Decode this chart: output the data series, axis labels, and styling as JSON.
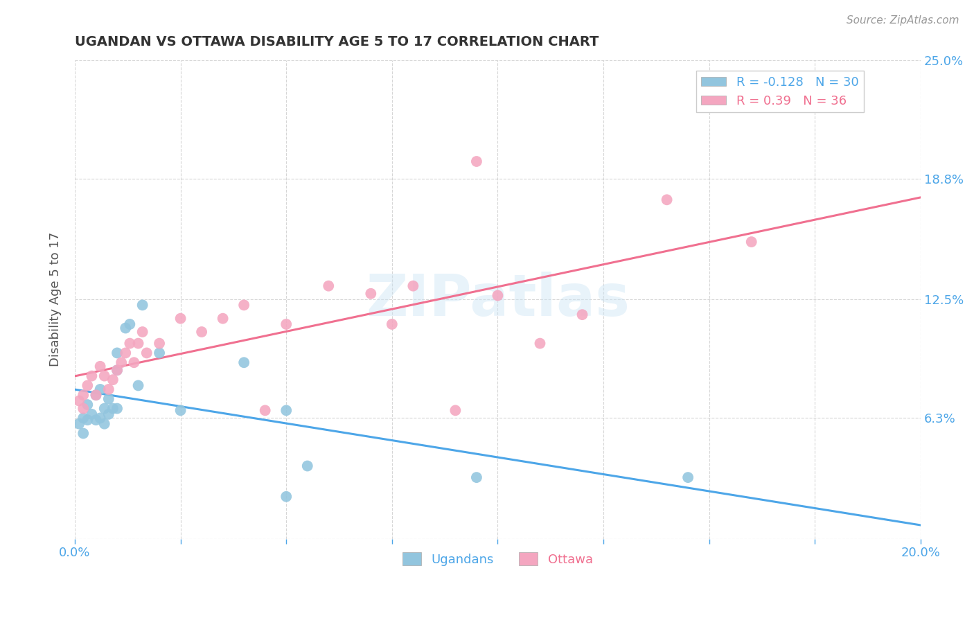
{
  "title": "UGANDAN VS OTTAWA DISABILITY AGE 5 TO 17 CORRELATION CHART",
  "source": "Source: ZipAtlas.com",
  "ylabel": "Disability Age 5 to 17",
  "xlim": [
    0.0,
    0.2
  ],
  "ylim": [
    0.0,
    0.25
  ],
  "xtick_positions": [
    0.0,
    0.025,
    0.05,
    0.075,
    0.1,
    0.125,
    0.15,
    0.175,
    0.2
  ],
  "xtick_labels": [
    "0.0%",
    "",
    "",
    "",
    "",
    "",
    "",
    "",
    "20.0%"
  ],
  "ytick_positions": [
    0.0,
    0.063,
    0.125,
    0.188,
    0.25
  ],
  "ytick_labels": [
    "",
    "6.3%",
    "12.5%",
    "18.8%",
    "25.0%"
  ],
  "ugandan_color": "#92c5de",
  "ottawa_color": "#f4a6c0",
  "ugandan_line_color": "#4da6e8",
  "ottawa_line_color": "#f07090",
  "legend_R1": "R = -0.128",
  "legend_N1": "N = 30",
  "legend_N2": "N = 36",
  "legend_group1": "Ugandans",
  "legend_group2": "Ottawa",
  "watermark": "ZIPatlas",
  "ugandan_R": -0.128,
  "ugandan_N": 30,
  "ottawa_R": 0.39,
  "ottawa_N": 36,
  "ugandan_x": [
    0.001,
    0.002,
    0.002,
    0.003,
    0.003,
    0.004,
    0.005,
    0.005,
    0.006,
    0.006,
    0.007,
    0.007,
    0.008,
    0.008,
    0.009,
    0.01,
    0.01,
    0.012,
    0.013,
    0.015,
    0.016,
    0.02,
    0.025,
    0.04,
    0.05,
    0.055,
    0.095,
    0.145,
    0.05,
    0.01
  ],
  "ugandan_y": [
    0.06,
    0.055,
    0.063,
    0.07,
    0.062,
    0.065,
    0.075,
    0.062,
    0.078,
    0.063,
    0.068,
    0.06,
    0.065,
    0.073,
    0.068,
    0.088,
    0.097,
    0.11,
    0.112,
    0.08,
    0.122,
    0.097,
    0.067,
    0.092,
    0.067,
    0.038,
    0.032,
    0.032,
    0.022,
    0.068
  ],
  "ottawa_x": [
    0.001,
    0.002,
    0.002,
    0.003,
    0.004,
    0.005,
    0.006,
    0.007,
    0.008,
    0.009,
    0.01,
    0.011,
    0.012,
    0.013,
    0.014,
    0.015,
    0.016,
    0.017,
    0.02,
    0.025,
    0.03,
    0.035,
    0.04,
    0.045,
    0.05,
    0.06,
    0.07,
    0.075,
    0.08,
    0.09,
    0.095,
    0.1,
    0.11,
    0.12,
    0.14,
    0.16
  ],
  "ottawa_y": [
    0.072,
    0.068,
    0.075,
    0.08,
    0.085,
    0.075,
    0.09,
    0.085,
    0.078,
    0.083,
    0.088,
    0.092,
    0.097,
    0.102,
    0.092,
    0.102,
    0.108,
    0.097,
    0.102,
    0.115,
    0.108,
    0.115,
    0.122,
    0.067,
    0.112,
    0.132,
    0.128,
    0.112,
    0.132,
    0.067,
    0.197,
    0.127,
    0.102,
    0.117,
    0.177,
    0.155
  ]
}
